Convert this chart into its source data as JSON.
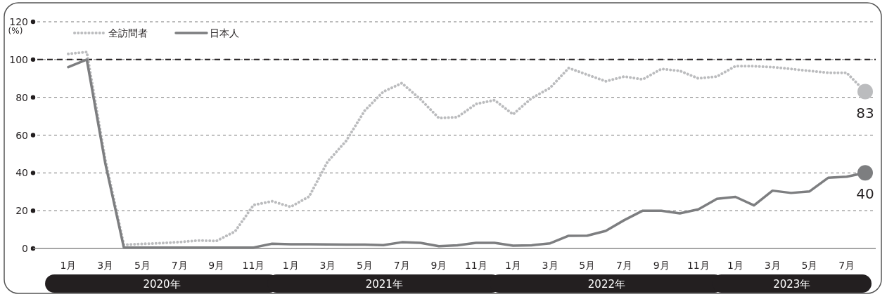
{
  "chart_data": {
    "type": "line",
    "categories": [
      "1月",
      null,
      "3月",
      null,
      "5月",
      null,
      "7月",
      null,
      "9月",
      null,
      "11月",
      null,
      "1月",
      null,
      "3月",
      null,
      "5月",
      null,
      "7月",
      null,
      "9月",
      null,
      "11月",
      null,
      "1月",
      null,
      "3月",
      null,
      "5月",
      null,
      "7月",
      null,
      "9月",
      null,
      "11月",
      null,
      "1月",
      null,
      "3月",
      null,
      "5月",
      null,
      "7月",
      null
    ],
    "series": [
      {
        "name": "全訪問者",
        "color": "#bbbcbe",
        "line_style": "dotted",
        "values": [
          103,
          104,
          47,
          2,
          2.4,
          2.8,
          3.4,
          4.2,
          4,
          9,
          23,
          25,
          22,
          27.5,
          46,
          57,
          73,
          83,
          87.5,
          79,
          69,
          69.5,
          76.5,
          78.5,
          71,
          79.5,
          85,
          95.5,
          92,
          88.5,
          91,
          89.5,
          95,
          94,
          90,
          91,
          96.5,
          96.5,
          96,
          95,
          94,
          93,
          93,
          83
        ],
        "value_labels": [
          null,
          null,
          null,
          null,
          null,
          null,
          null,
          null,
          null,
          null,
          null,
          null,
          null,
          null,
          null,
          null,
          null,
          null,
          null,
          null,
          null,
          null,
          null,
          null,
          null,
          null,
          null,
          null,
          null,
          null,
          null,
          null,
          null,
          null,
          null,
          null,
          null,
          null,
          null,
          null,
          null,
          null,
          null,
          "83"
        ]
      },
      {
        "name": "日本人",
        "color": "#7d7e80",
        "line_style": "solid",
        "values": [
          96,
          100,
          45,
          0.5,
          0.5,
          0.5,
          0.5,
          0.5,
          0.5,
          0.5,
          0.5,
          2.5,
          2.2,
          2.2,
          2.1,
          2,
          2,
          1.8,
          3.3,
          3,
          1.2,
          1.7,
          3,
          3,
          1.5,
          1.7,
          2.7,
          6.7,
          6.8,
          9.3,
          15,
          20,
          20,
          18.6,
          20.7,
          26.3,
          27.3,
          22.8,
          30.6,
          29.4,
          30.2,
          37.4,
          38,
          40
        ],
        "value_labels": [
          null,
          null,
          null,
          null,
          null,
          null,
          null,
          null,
          null,
          null,
          null,
          null,
          null,
          null,
          null,
          null,
          null,
          null,
          null,
          null,
          null,
          null,
          null,
          null,
          null,
          null,
          null,
          null,
          null,
          null,
          null,
          null,
          null,
          null,
          null,
          null,
          null,
          null,
          null,
          null,
          null,
          null,
          null,
          "40"
        ]
      }
    ],
    "ylim": [
      0,
      120
    ],
    "yticks": [
      0,
      20,
      40,
      60,
      80,
      100,
      120
    ],
    "ylabel": "(%)",
    "ref_lines": [
      {
        "axis": "y",
        "value": 100,
        "color": "#231f20",
        "line_style": "dashed"
      }
    ],
    "annotations": [
      "2020年",
      "2021年",
      "2022年",
      "2023年"
    ],
    "grid": "y",
    "legend": "top left"
  }
}
